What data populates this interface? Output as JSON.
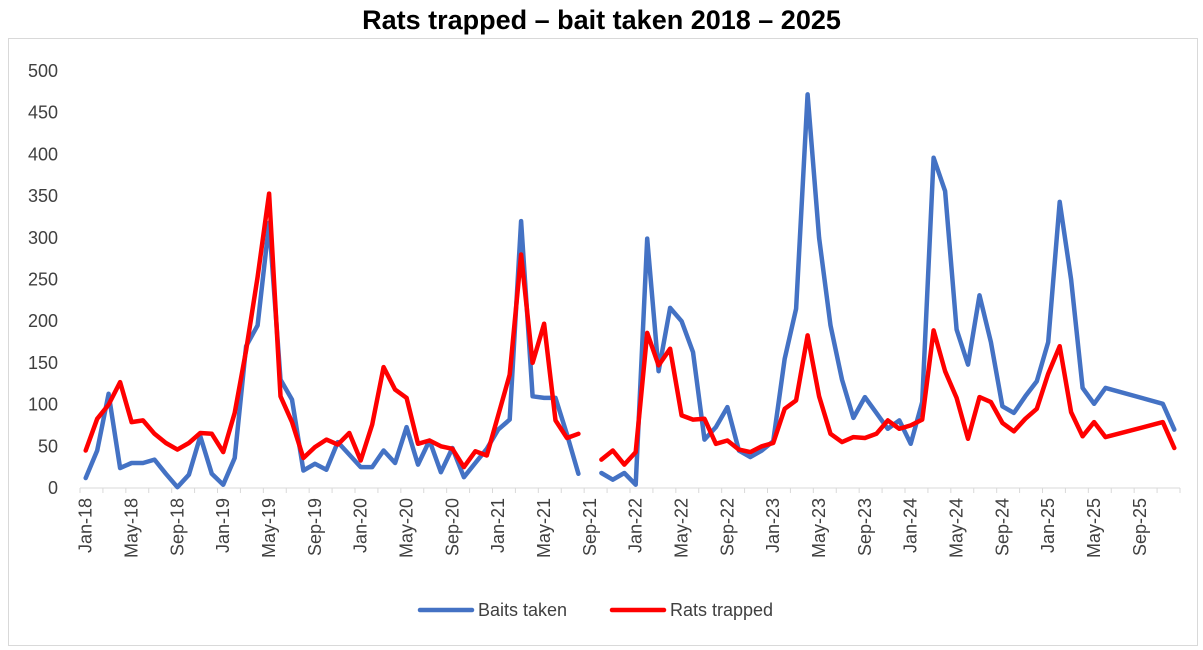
{
  "chart_data": {
    "type": "line",
    "title": "Rats trapped – bait taken 2018 – 2025",
    "xlabel": "",
    "ylabel": "",
    "ylim": [
      0,
      500
    ],
    "yticks": [
      "0",
      "50",
      "100",
      "150",
      "200",
      "250",
      "300",
      "350",
      "400",
      "450",
      "500"
    ],
    "xticks": [
      "Jan-18",
      "May-18",
      "Sep-18",
      "Jan-19",
      "May-19",
      "Sep-19",
      "Jan-20",
      "May-20",
      "Sep-20",
      "Jan-21",
      "May-21",
      "Sep-21",
      "Jan-22",
      "May-22",
      "Sep-22",
      "Jan-23",
      "May-23",
      "Sep-23",
      "Jan-24",
      "May-24",
      "Sep-24",
      "Jan-25",
      "May-25",
      "Sep-25"
    ],
    "x_start": "Jan-18",
    "grid": false,
    "legend": "bottom",
    "series": [
      {
        "name": "Baits taken",
        "color": "#4472C4",
        "points": [
          [
            "Jan-18",
            12
          ],
          [
            "Feb-18",
            45
          ],
          [
            "Mar-18",
            113
          ],
          [
            "Apr-18",
            24
          ],
          [
            "May-18",
            30
          ],
          [
            "Jun-18",
            30
          ],
          [
            "Jul-18",
            34
          ],
          [
            "Aug-18",
            17
          ],
          [
            "Sep-18",
            1
          ],
          [
            "Oct-18",
            16
          ],
          [
            "Nov-18",
            62
          ],
          [
            "Dec-18",
            17
          ],
          [
            "Jan-19",
            4
          ],
          [
            "Feb-19",
            36
          ],
          [
            "Mar-19",
            170
          ],
          [
            "Apr-19",
            195
          ],
          [
            "May-19",
            318
          ],
          [
            "Jun-19",
            130
          ],
          [
            "Jul-19",
            106
          ],
          [
            "Aug-19",
            21
          ],
          [
            "Sep-19",
            29
          ],
          [
            "Oct-19",
            22
          ],
          [
            "Nov-19",
            55
          ],
          [
            "Dec-19",
            40
          ],
          [
            "Jan-20",
            25
          ],
          [
            "Feb-20",
            25
          ],
          [
            "Mar-20",
            45
          ],
          [
            "Apr-20",
            30
          ],
          [
            "May-20",
            73
          ],
          [
            "Jun-20",
            28
          ],
          [
            "Jul-20",
            57
          ],
          [
            "Aug-20",
            19
          ],
          [
            "Sep-20",
            48
          ],
          [
            "Oct-20",
            13
          ],
          [
            "Nov-20",
            30
          ],
          [
            "Dec-20",
            47
          ],
          [
            "Jan-21",
            70
          ],
          [
            "Feb-21",
            82
          ],
          [
            "Mar-21",
            320
          ],
          [
            "Apr-21",
            110
          ],
          [
            "May-21",
            108
          ],
          [
            "Jun-21",
            108
          ],
          [
            "Jul-21",
            64
          ],
          [
            "Aug-21",
            17
          ],
          [
            "Oct-21",
            18
          ],
          [
            "Nov-21",
            10
          ],
          [
            "Dec-21",
            18
          ],
          [
            "Jan-22",
            4
          ],
          [
            "Feb-22",
            299
          ],
          [
            "Mar-22",
            140
          ],
          [
            "Apr-22",
            216
          ],
          [
            "May-22",
            200
          ],
          [
            "Jun-22",
            163
          ],
          [
            "Jul-22",
            58
          ],
          [
            "Aug-22",
            73
          ],
          [
            "Sep-22",
            97
          ],
          [
            "Oct-22",
            45
          ],
          [
            "Nov-22",
            37
          ],
          [
            "Dec-22",
            45
          ],
          [
            "Jan-23",
            56
          ],
          [
            "Feb-23",
            155
          ],
          [
            "Mar-23",
            215
          ],
          [
            "Apr-23",
            472
          ],
          [
            "May-23",
            300
          ],
          [
            "Jun-23",
            195
          ],
          [
            "Jul-23",
            130
          ],
          [
            "Aug-23",
            84
          ],
          [
            "Sep-23",
            109
          ],
          [
            "Oct-23",
            90
          ],
          [
            "Nov-23",
            71
          ],
          [
            "Dec-23",
            81
          ],
          [
            "Jan-24",
            53
          ],
          [
            "Feb-24",
            103
          ],
          [
            "Mar-24",
            396
          ],
          [
            "Apr-24",
            356
          ],
          [
            "May-24",
            190
          ],
          [
            "Jun-24",
            148
          ],
          [
            "Jul-24",
            231
          ],
          [
            "Aug-24",
            175
          ],
          [
            "Sep-24",
            98
          ],
          [
            "Oct-24",
            90
          ],
          [
            "Nov-24",
            110
          ],
          [
            "Dec-24",
            128
          ],
          [
            "Jan-25",
            175
          ],
          [
            "Feb-25",
            343
          ],
          [
            "Mar-25",
            250
          ],
          [
            "Apr-25",
            120
          ],
          [
            "May-25",
            101
          ],
          [
            "Jun-25",
            120
          ],
          [
            "Nov-25",
            101
          ],
          [
            "Dec-25",
            70
          ]
        ]
      },
      {
        "name": "Rats trapped",
        "color": "#FF0000",
        "points": [
          [
            "Jan-18",
            45
          ],
          [
            "Feb-18",
            83
          ],
          [
            "Mar-18",
            100
          ],
          [
            "Apr-18",
            127
          ],
          [
            "May-18",
            79
          ],
          [
            "Jun-18",
            81
          ],
          [
            "Jul-18",
            65
          ],
          [
            "Aug-18",
            54
          ],
          [
            "Sep-18",
            46
          ],
          [
            "Oct-18",
            54
          ],
          [
            "Nov-18",
            66
          ],
          [
            "Dec-18",
            65
          ],
          [
            "Jan-19",
            43
          ],
          [
            "Feb-19",
            90
          ],
          [
            "Mar-19",
            165
          ],
          [
            "Apr-19",
            253
          ],
          [
            "May-19",
            353
          ],
          [
            "Jun-19",
            110
          ],
          [
            "Jul-19",
            79
          ],
          [
            "Aug-19",
            36
          ],
          [
            "Sep-19",
            49
          ],
          [
            "Oct-19",
            58
          ],
          [
            "Nov-19",
            52
          ],
          [
            "Dec-19",
            66
          ],
          [
            "Jan-20",
            33
          ],
          [
            "Feb-20",
            76
          ],
          [
            "Mar-20",
            145
          ],
          [
            "Apr-20",
            118
          ],
          [
            "May-20",
            108
          ],
          [
            "Jun-20",
            53
          ],
          [
            "Jul-20",
            57
          ],
          [
            "Aug-20",
            50
          ],
          [
            "Sep-20",
            47
          ],
          [
            "Oct-20",
            25
          ],
          [
            "Nov-20",
            44
          ],
          [
            "Dec-20",
            39
          ],
          [
            "Jan-21",
            87
          ],
          [
            "Feb-21",
            136
          ],
          [
            "Mar-21",
            280
          ],
          [
            "Apr-21",
            150
          ],
          [
            "May-21",
            197
          ],
          [
            "Jun-21",
            81
          ],
          [
            "Jul-21",
            60
          ],
          [
            "Aug-21",
            65
          ],
          [
            "Oct-21",
            34
          ],
          [
            "Nov-21",
            45
          ],
          [
            "Dec-21",
            28
          ],
          [
            "Jan-22",
            43
          ],
          [
            "Feb-22",
            186
          ],
          [
            "Mar-22",
            147
          ],
          [
            "Apr-22",
            167
          ],
          [
            "May-22",
            87
          ],
          [
            "Jun-22",
            82
          ],
          [
            "Jul-22",
            83
          ],
          [
            "Aug-22",
            53
          ],
          [
            "Sep-22",
            57
          ],
          [
            "Oct-22",
            46
          ],
          [
            "Nov-22",
            43
          ],
          [
            "Dec-22",
            50
          ],
          [
            "Jan-23",
            54
          ],
          [
            "Feb-23",
            95
          ],
          [
            "Mar-23",
            105
          ],
          [
            "Apr-23",
            183
          ],
          [
            "May-23",
            110
          ],
          [
            "Jun-23",
            65
          ],
          [
            "Jul-23",
            55
          ],
          [
            "Aug-23",
            61
          ],
          [
            "Sep-23",
            60
          ],
          [
            "Oct-23",
            65
          ],
          [
            "Nov-23",
            81
          ],
          [
            "Dec-23",
            71
          ],
          [
            "Jan-24",
            75
          ],
          [
            "Feb-24",
            82
          ],
          [
            "Mar-24",
            189
          ],
          [
            "Apr-24",
            140
          ],
          [
            "May-24",
            108
          ],
          [
            "Jun-24",
            59
          ],
          [
            "Jul-24",
            109
          ],
          [
            "Aug-24",
            103
          ],
          [
            "Sep-24",
            78
          ],
          [
            "Oct-24",
            68
          ],
          [
            "Nov-24",
            83
          ],
          [
            "Dec-24",
            95
          ],
          [
            "Jan-25",
            137
          ],
          [
            "Feb-25",
            170
          ],
          [
            "Mar-25",
            91
          ],
          [
            "Apr-25",
            62
          ],
          [
            "May-25",
            79
          ],
          [
            "Jun-25",
            61
          ],
          [
            "Nov-25",
            79
          ],
          [
            "Dec-25",
            48
          ]
        ]
      }
    ]
  }
}
